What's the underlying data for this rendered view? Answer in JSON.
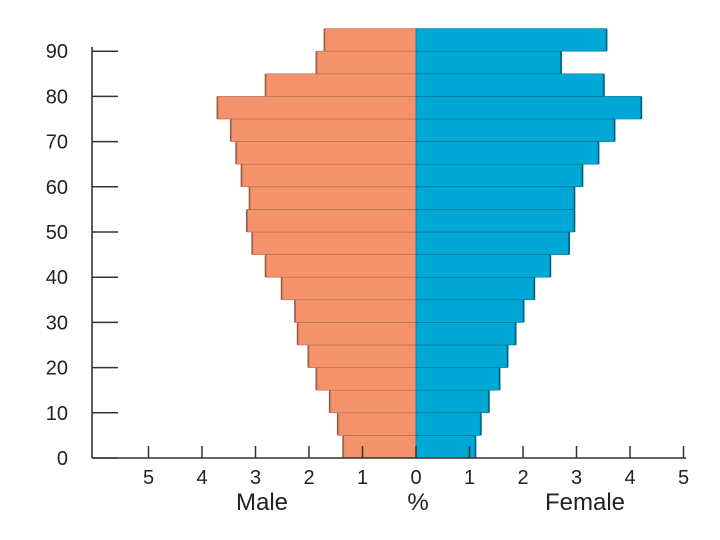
{
  "chart_data": {
    "type": "bar",
    "orientation": "horizontal-pyramid",
    "title": "",
    "xlabel": "%",
    "ylabel": "",
    "left_label": "Male",
    "right_label": "Female",
    "age_groups": [
      0,
      5,
      10,
      15,
      20,
      25,
      30,
      35,
      40,
      45,
      50,
      55,
      60,
      65,
      70,
      75,
      80,
      85,
      90
    ],
    "y_ticks": [
      0,
      10,
      20,
      30,
      40,
      50,
      60,
      70,
      80,
      90
    ],
    "x_ticks_left": [
      5,
      4,
      3,
      2,
      1
    ],
    "x_tick_center": "0",
    "x_ticks_right": [
      1,
      2,
      3,
      4,
      5
    ],
    "xlim": [
      -5,
      5
    ],
    "series": [
      {
        "name": "Male",
        "color": "#f4926b",
        "values": [
          1.35,
          1.45,
          1.6,
          1.85,
          2.0,
          2.2,
          2.25,
          2.5,
          2.8,
          3.05,
          3.15,
          3.1,
          3.25,
          3.35,
          3.45,
          3.7,
          2.8,
          1.85,
          1.7
        ]
      },
      {
        "name": "Female",
        "color": "#00a8d6",
        "values": [
          1.1,
          1.2,
          1.35,
          1.55,
          1.7,
          1.85,
          2.0,
          2.2,
          2.5,
          2.85,
          2.95,
          2.95,
          3.1,
          3.4,
          3.7,
          4.2,
          3.5,
          2.7,
          3.55
        ]
      }
    ]
  }
}
